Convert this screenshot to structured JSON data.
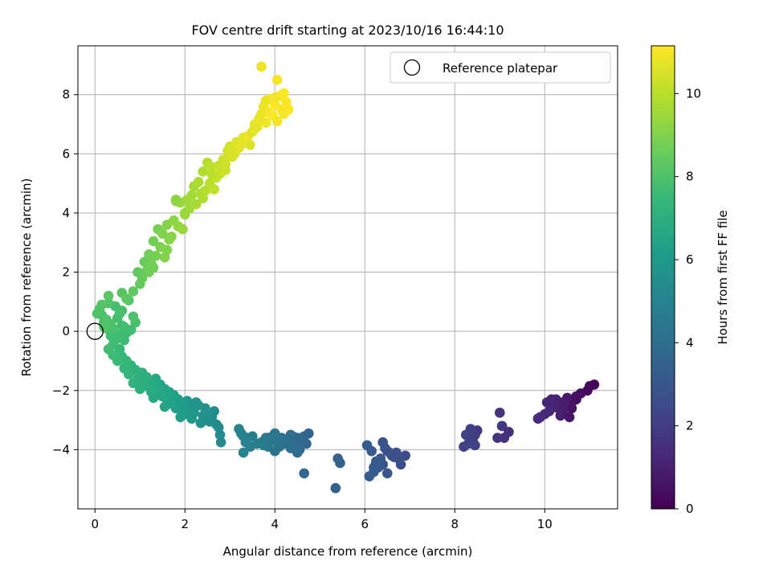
{
  "chart_data": {
    "type": "scatter",
    "title": "FOV centre drift starting at 2023/10/16 16:44:10",
    "xlabel": "Angular distance from reference (arcmin)",
    "ylabel": "Rotation from reference (arcmin)",
    "xlim": [
      -0.38,
      11.62
    ],
    "ylim": [
      -6.0,
      9.65
    ],
    "x_ticks": [
      0,
      2,
      4,
      6,
      8,
      10
    ],
    "y_ticks": [
      -4,
      -2,
      0,
      2,
      4,
      6,
      8
    ],
    "x_tick_labels": [
      "0",
      "2",
      "4",
      "6",
      "8",
      "10"
    ],
    "y_tick_labels": [
      "−4",
      "−2",
      "0",
      "2",
      "4",
      "6",
      "8"
    ],
    "grid": true,
    "legend": {
      "placement": "top-right",
      "entries": [
        "Reference platepar"
      ]
    },
    "reference_point": {
      "x": 0,
      "y": 0,
      "label": "Reference platepar"
    },
    "colorbar": {
      "label": "Hours from first FF file",
      "min": 0,
      "max": 11.15,
      "ticks": [
        0,
        2,
        4,
        6,
        8,
        10
      ],
      "tick_labels": [
        "0",
        "2",
        "4",
        "6",
        "8",
        "10"
      ],
      "colormap": "viridis"
    },
    "colormap_stops": [
      "#440154",
      "#482878",
      "#3e4a89",
      "#31688e",
      "#26828e",
      "#1f9e89",
      "#35b779",
      "#6ece58",
      "#b5de2b",
      "#fde725"
    ],
    "series": [
      {
        "x": [
          11.1,
          11.0,
          10.95,
          10.8,
          10.7,
          10.6,
          10.5,
          10.45,
          10.4,
          10.3,
          10.25,
          10.2,
          10.1,
          10.05,
          10.0,
          9.9,
          9.85,
          10.6,
          10.4,
          10.15,
          10.7,
          10.35,
          10.55
        ],
        "y": [
          -1.8,
          -1.85,
          -2.0,
          -2.1,
          -2.3,
          -2.4,
          -2.25,
          -2.5,
          -2.4,
          -2.6,
          -2.3,
          -2.55,
          -2.7,
          -2.4,
          -2.8,
          -2.9,
          -2.95,
          -2.6,
          -2.7,
          -2.3,
          -2.2,
          -2.85,
          -2.9
        ],
        "c": [
          0.1,
          0.2,
          0.3,
          0.4,
          0.5,
          0.6,
          0.7,
          0.8,
          0.9,
          1.0,
          1.05,
          1.1,
          1.15,
          1.2,
          1.25,
          1.3,
          1.35,
          0.55,
          0.85,
          1.1,
          0.45,
          0.95,
          0.65
        ]
      },
      {
        "x": [
          9.2,
          9.1,
          9.05,
          9.0,
          8.95,
          9.05,
          8.5,
          8.45,
          8.4,
          8.35,
          8.3,
          8.25,
          8.2,
          8.45
        ],
        "y": [
          -3.4,
          -3.6,
          -3.2,
          -2.75,
          -3.6,
          -3.2,
          -3.35,
          -3.5,
          -3.7,
          -3.3,
          -3.8,
          -3.5,
          -3.9,
          -3.85
        ],
        "c": [
          1.5,
          1.55,
          1.6,
          1.65,
          1.7,
          1.75,
          1.9,
          1.95,
          2.0,
          2.05,
          2.1,
          2.15,
          2.2,
          2.25
        ]
      },
      {
        "x": [
          6.9,
          6.8,
          6.75,
          6.7,
          6.6,
          6.5,
          6.45,
          6.4,
          6.35,
          6.3,
          6.25,
          6.2,
          6.15,
          6.1,
          6.05,
          6.4,
          6.5,
          6.55,
          6.3,
          6.2,
          6.65,
          5.45,
          5.4,
          5.35
        ],
        "y": [
          -4.2,
          -4.5,
          -4.3,
          -4.1,
          -4.2,
          -4.05,
          -3.95,
          -3.75,
          -4.3,
          -4.6,
          -4.4,
          -4.75,
          -4.05,
          -4.9,
          -3.85,
          -4.5,
          -4.8,
          -4.1,
          -4.45,
          -4.6,
          -4.25,
          -4.45,
          -4.3,
          -5.3
        ],
        "c": [
          2.6,
          2.65,
          2.7,
          2.75,
          2.8,
          2.85,
          2.9,
          2.95,
          3.0,
          3.05,
          3.1,
          3.15,
          3.2,
          3.25,
          3.3,
          2.85,
          3.0,
          2.75,
          3.15,
          3.2,
          2.7,
          3.4,
          3.45,
          3.5
        ]
      },
      {
        "x": [
          4.75,
          4.7,
          4.65,
          4.6,
          4.55,
          4.5,
          4.45,
          4.4,
          4.35,
          4.3,
          4.25,
          4.2,
          4.15,
          4.1,
          4.05,
          4.0,
          3.95,
          3.9,
          3.85,
          3.8,
          3.75,
          3.7,
          3.6,
          3.5,
          3.45,
          3.4,
          3.35,
          3.3,
          3.25,
          3.2,
          4.65,
          4.5,
          4.35,
          4.0,
          3.85,
          3.3
        ],
        "y": [
          -3.45,
          -3.8,
          -3.55,
          -3.7,
          -4.0,
          -3.6,
          -3.85,
          -3.55,
          -3.95,
          -3.7,
          -3.65,
          -3.8,
          -3.6,
          -3.9,
          -3.75,
          -3.45,
          -3.55,
          -3.7,
          -3.9,
          -3.6,
          -3.85,
          -3.75,
          -3.8,
          -3.55,
          -3.9,
          -3.6,
          -3.75,
          -4.1,
          -3.45,
          -3.3,
          -4.8,
          -4.1,
          -3.5,
          -4.05,
          -3.6,
          -3.55
        ],
        "c": [
          3.6,
          3.65,
          3.7,
          3.75,
          3.8,
          3.85,
          3.9,
          3.95,
          4.0,
          4.05,
          4.1,
          4.15,
          4.2,
          4.25,
          4.3,
          4.35,
          4.4,
          4.45,
          4.5,
          4.55,
          4.6,
          4.65,
          4.7,
          4.75,
          4.8,
          4.85,
          4.9,
          4.95,
          5.0,
          5.05,
          3.7,
          3.9,
          4.0,
          4.3,
          4.5,
          4.95
        ]
      },
      {
        "x": [
          2.8,
          2.78,
          2.75,
          2.7,
          2.65,
          2.6,
          2.55,
          2.5,
          2.45,
          2.4,
          2.35,
          2.3,
          2.25,
          2.2,
          2.15,
          2.1,
          2.05,
          2.0,
          1.95,
          1.9,
          1.85,
          1.8,
          1.75,
          1.7,
          1.65,
          1.6,
          1.55,
          1.5,
          1.45,
          1.4,
          1.35,
          1.3,
          1.25,
          1.2,
          1.15,
          1.1,
          1.05,
          1.0,
          0.95,
          0.9,
          0.85,
          0.8,
          0.75,
          0.7,
          0.65,
          0.6,
          2.45,
          2.2,
          1.95,
          1.55,
          1.3,
          1.05
        ],
        "y": [
          -3.75,
          -3.5,
          -3.25,
          -3.15,
          -2.7,
          -2.9,
          -3.05,
          -2.75,
          -2.6,
          -2.85,
          -3.1,
          -2.5,
          -2.4,
          -2.75,
          -2.95,
          -2.6,
          -2.35,
          -2.8,
          -2.5,
          -2.9,
          -2.3,
          -2.6,
          -2.15,
          -2.45,
          -2.05,
          -2.3,
          -1.95,
          -2.2,
          -1.8,
          -2.1,
          -1.6,
          -1.9,
          -2.05,
          -1.75,
          -1.55,
          -1.85,
          -1.4,
          -1.95,
          -1.6,
          -1.3,
          -1.75,
          -1.15,
          -1.45,
          -1.0,
          -1.25,
          -0.85,
          -3.0,
          -2.45,
          -2.7,
          -2.55,
          -2.25,
          -1.7
        ],
        "c": [
          5.2,
          5.25,
          5.3,
          5.35,
          5.4,
          5.45,
          5.5,
          5.55,
          5.6,
          5.65,
          5.7,
          5.75,
          5.8,
          5.85,
          5.9,
          5.95,
          6.0,
          6.05,
          6.1,
          6.15,
          6.2,
          6.25,
          6.3,
          6.35,
          6.4,
          6.45,
          6.5,
          6.55,
          6.6,
          6.65,
          6.7,
          6.75,
          6.8,
          6.85,
          6.9,
          6.95,
          7.0,
          7.05,
          7.1,
          7.15,
          7.2,
          7.25,
          7.3,
          7.35,
          7.4,
          7.45,
          5.5,
          5.8,
          6.1,
          6.5,
          6.7,
          7.0
        ]
      },
      {
        "x": [
          0.55,
          0.5,
          0.45,
          0.4,
          0.35,
          0.3,
          0.25,
          0.2,
          0.15,
          0.1,
          0.05,
          0.6,
          0.55,
          0.5,
          0.45,
          0.4,
          0.35,
          0.3,
          0.25,
          0.2,
          0.15,
          0.7,
          0.65,
          0.6,
          0.8,
          0.75,
          0.9,
          0.85,
          0.5,
          0.4,
          0.6,
          0.3,
          0.45,
          0.65,
          0.55
        ],
        "y": [
          -0.6,
          -0.9,
          -0.3,
          -0.45,
          -0.15,
          -0.6,
          0.1,
          0.3,
          0.55,
          0.75,
          0.6,
          0.2,
          -0.1,
          0.45,
          0.85,
          0.1,
          0.25,
          0.95,
          0.4,
          0.15,
          0.9,
          -0.05,
          -0.3,
          0.7,
          0.05,
          1.05,
          0.3,
          0.5,
          -1.0,
          -0.8,
          1.3,
          1.2,
          -0.2,
          0.15,
          0.6
        ],
        "c": [
          7.5,
          7.55,
          7.6,
          7.65,
          7.7,
          7.75,
          7.8,
          7.85,
          7.9,
          7.95,
          8.0,
          7.7,
          7.75,
          7.8,
          7.85,
          7.9,
          7.95,
          8.0,
          8.05,
          8.1,
          8.15,
          7.6,
          7.65,
          7.9,
          7.7,
          8.0,
          7.85,
          7.95,
          7.55,
          7.6,
          8.2,
          8.25,
          7.65,
          7.75,
          7.85
        ]
      },
      {
        "x": [
          0.7,
          0.85,
          0.95,
          1.0,
          1.05,
          1.1,
          1.15,
          1.2,
          1.25,
          1.3,
          1.35,
          1.4,
          1.45,
          1.5,
          1.55,
          1.6,
          1.65,
          1.7,
          1.75,
          1.8,
          1.85,
          1.9,
          1.95,
          2.0,
          2.05,
          2.1,
          2.15,
          2.2,
          2.25,
          2.3,
          2.35,
          2.4,
          2.45,
          2.5,
          2.55,
          2.6,
          2.65,
          2.7,
          2.75,
          2.8,
          2.85,
          2.9,
          2.95,
          3.0,
          3.05,
          3.1,
          3.15,
          3.2,
          3.25,
          3.3,
          3.35,
          3.4,
          1.3,
          1.6,
          1.8,
          2.4,
          2.6,
          2.9,
          1.2,
          2.0
        ],
        "y": [
          1.1,
          1.35,
          2.0,
          1.6,
          1.8,
          2.35,
          2.05,
          2.6,
          2.3,
          3.05,
          2.55,
          3.45,
          2.85,
          3.3,
          2.5,
          3.6,
          3.1,
          3.2,
          3.75,
          4.45,
          3.55,
          4.35,
          3.45,
          4.0,
          4.45,
          4.15,
          4.6,
          4.9,
          4.3,
          5.05,
          4.65,
          5.4,
          4.75,
          5.7,
          5.0,
          5.55,
          4.8,
          5.2,
          5.6,
          5.35,
          5.8,
          5.65,
          6.1,
          6.25,
          5.9,
          6.0,
          6.4,
          6.2,
          6.3,
          6.55,
          6.45,
          6.6,
          2.15,
          2.75,
          4.4,
          4.5,
          5.3,
          5.45,
          2.0,
          3.95
        ],
        "c": [
          8.3,
          8.35,
          8.4,
          8.45,
          8.5,
          8.55,
          8.6,
          8.65,
          8.7,
          8.75,
          8.8,
          8.85,
          8.9,
          8.95,
          9.0,
          9.05,
          9.1,
          9.15,
          9.2,
          9.25,
          9.3,
          9.35,
          9.4,
          9.45,
          9.5,
          9.55,
          9.6,
          9.65,
          9.7,
          9.75,
          9.8,
          9.85,
          9.9,
          9.95,
          10.0,
          10.05,
          10.1,
          10.15,
          10.2,
          10.25,
          10.3,
          10.35,
          10.4,
          10.45,
          10.5,
          10.55,
          10.6,
          10.65,
          10.7,
          10.75,
          10.8,
          10.85,
          8.75,
          9.0,
          9.25,
          9.8,
          10.0,
          10.35,
          8.7,
          9.45
        ]
      },
      {
        "x": [
          3.45,
          3.5,
          3.55,
          3.6,
          3.65,
          3.7,
          3.75,
          3.8,
          3.85,
          3.9,
          3.95,
          4.0,
          4.05,
          4.1,
          4.15,
          4.2,
          4.25,
          4.3,
          3.7,
          4.05,
          3.8,
          4.2,
          3.55,
          3.65,
          4.0
        ],
        "y": [
          6.3,
          6.75,
          7.0,
          6.9,
          7.2,
          7.35,
          7.6,
          7.05,
          7.4,
          7.85,
          7.3,
          7.65,
          7.1,
          7.95,
          7.5,
          8.05,
          7.75,
          7.5,
          8.95,
          8.5,
          7.8,
          7.35,
          6.85,
          7.15,
          7.9
        ],
        "c": [
          10.6,
          10.65,
          10.7,
          10.75,
          10.8,
          10.85,
          10.9,
          10.95,
          11.0,
          11.05,
          11.1,
          11.15,
          11.0,
          10.95,
          11.05,
          11.1,
          11.15,
          11.1,
          10.9,
          11.0,
          10.85,
          11.05,
          10.7,
          10.8,
          11.0
        ]
      }
    ]
  }
}
